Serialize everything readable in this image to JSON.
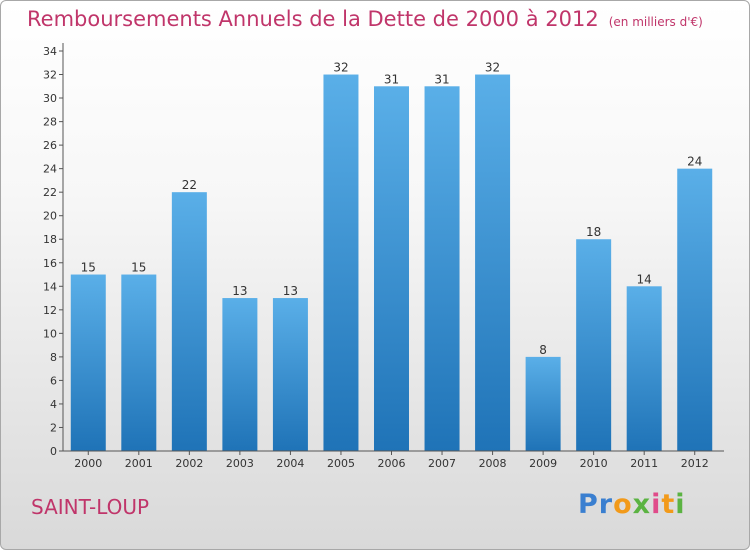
{
  "chart_data": {
    "type": "bar",
    "title": "Remboursements Annuels de la Dette de 2000 à 2012",
    "unit_note": "(en milliers d'€)",
    "categories": [
      "2000",
      "2001",
      "2002",
      "2003",
      "2004",
      "2005",
      "2006",
      "2007",
      "2008",
      "2009",
      "2010",
      "2011",
      "2012"
    ],
    "values": [
      15,
      15,
      22,
      13,
      13,
      32,
      31,
      31,
      32,
      8,
      18,
      14,
      24
    ],
    "xlabel": "",
    "ylabel": "",
    "ylim": [
      0,
      34
    ],
    "yticks": [
      0,
      2,
      4,
      6,
      8,
      10,
      12,
      14,
      16,
      18,
      20,
      22,
      24,
      26,
      28,
      30,
      32,
      34
    ],
    "grid": false,
    "bar_color": "#2f8ad2"
  },
  "footer": {
    "commune": "SAINT-LOUP",
    "logo": "Proxiti"
  },
  "colors": {
    "title": "#c0356a",
    "bar_top": "#5aafe8",
    "bar_bottom": "#1f73b7"
  }
}
